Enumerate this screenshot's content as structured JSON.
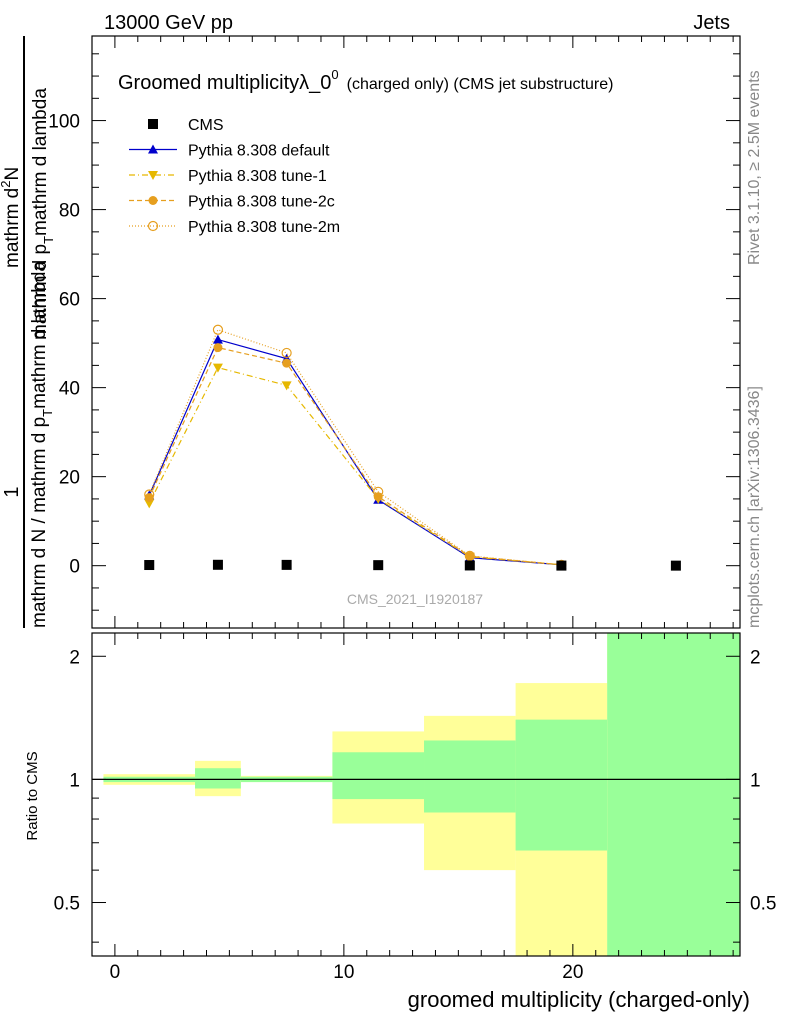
{
  "header": {
    "energy_label": "13000 GeV pp",
    "process_label": "Jets"
  },
  "side_text": {
    "rivet_label": "Rivet 3.1.10, ≥ 2.5M events",
    "mcplots_label": "mcplots.cern.ch [arXiv:1306.3436]"
  },
  "analysis_label": "CMS_2021_I1920187",
  "chart_data": [
    {
      "type": "line",
      "title_main": "Groomed multiplicityλ_0",
      "title_sup": "0",
      "title_suffix": "(charged only) (CMS jet substructure)",
      "ylabel_numerator": "1",
      "ylabel_denominator": "mathrm d N / mathrm d p",
      "ylabel_denominator_sub": "T",
      "ylabel_denominator_rest": "mathrm d lambda",
      "ylabel_top_numerator": "mathrm d",
      "ylabel_top_numerator_sup": "2",
      "ylabel_top_numerator_rest": "N",
      "ylabel_top_denominator": "mathrm d p",
      "ylabel_top_denominator_sub": "T",
      "ylabel_top_denominator_rest": "mathrm d lambda",
      "xlim": [
        -1.0,
        27.3
      ],
      "ylim": [
        -14,
        119
      ],
      "yticks": [
        0,
        20,
        40,
        60,
        80,
        100
      ],
      "grid": false,
      "legend_position": "top-left",
      "series": [
        {
          "name": "CMS",
          "color": "#000000",
          "marker": "square",
          "line": "none",
          "x": [
            1.5,
            4.5,
            7.5,
            11.5,
            15.5,
            19.5,
            24.5
          ],
          "y": [
            0.15,
            0.2,
            0.18,
            0.12,
            0.05,
            0.02,
            0.01
          ]
        },
        {
          "name": "Pythia 8.308 default",
          "color": "#0000cc",
          "marker": "triangle-up",
          "line": "solid",
          "x": [
            1.5,
            4.5,
            7.5,
            11.5,
            15.5,
            19.5
          ],
          "y": [
            15.8,
            50.8,
            46.5,
            14.8,
            1.8,
            0.2
          ]
        },
        {
          "name": "Pythia 8.308 tune-1",
          "color": "#e6b800",
          "marker": "triangle-down",
          "line": "dashdot",
          "x": [
            1.5,
            4.5,
            7.5,
            11.5,
            15.5,
            19.5
          ],
          "y": [
            14.0,
            44.5,
            40.5,
            15.0,
            2.0,
            0.2
          ]
        },
        {
          "name": "Pythia 8.308 tune-2c",
          "color": "#e69f1f",
          "marker": "circle",
          "line": "dashed",
          "x": [
            1.5,
            4.5,
            7.5,
            11.5,
            15.5,
            19.5
          ],
          "y": [
            15.3,
            49.0,
            45.5,
            15.5,
            2.1,
            0.2
          ]
        },
        {
          "name": "Pythia 8.308 tune-2m",
          "color": "#e69f1f",
          "marker": "circle-open",
          "line": "dotted",
          "x": [
            1.5,
            4.5,
            7.5,
            11.5,
            15.5,
            19.5
          ],
          "y": [
            16.0,
            53.0,
            47.8,
            16.6,
            2.2,
            0.2
          ]
        }
      ]
    },
    {
      "type": "area",
      "ylabel": "Ratio to CMS",
      "xlabel": "groomed multiplicity (charged-only)",
      "xlim": [
        -1.0,
        27.3
      ],
      "ylim": [
        0.37,
        2.28
      ],
      "yticks": [
        "0.5",
        "1",
        "2"
      ],
      "xticks": [
        0,
        10,
        20
      ],
      "reference_line": 1,
      "bands": {
        "bin_edges": [
          -0.5,
          3.5,
          5.5,
          9.5,
          13.5,
          17.5,
          21.5,
          27.3
        ],
        "green_low": [
          0.985,
          0.95,
          0.985,
          0.895,
          0.83,
          0.67,
          0.37
        ],
        "green_high": [
          1.015,
          1.065,
          1.015,
          1.165,
          1.245,
          1.4,
          2.28
        ],
        "yellow_low": [
          0.97,
          0.91,
          0.985,
          0.78,
          0.6,
          0.37,
          0.37
        ],
        "yellow_high": [
          1.03,
          1.11,
          1.02,
          1.31,
          1.43,
          1.72,
          2.28
        ],
        "green_color": "#99ff99",
        "yellow_color": "#ffff99"
      }
    }
  ]
}
